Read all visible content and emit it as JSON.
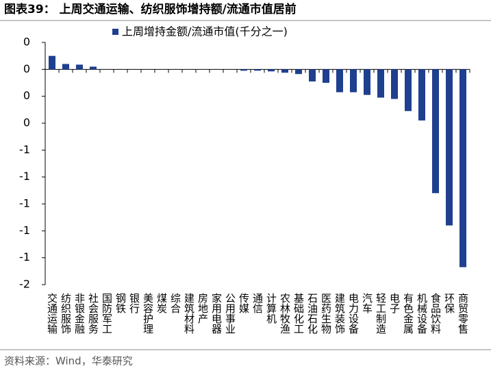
{
  "chart_data": {
    "type": "bar",
    "title": "图表39：  上周交通运输、纺织服饰增持额/流通市值居前",
    "source": "资料来源：Wind，华泰研究",
    "categories": [
      "交通运输",
      "纺织服饰",
      "非银金融",
      "社会服务",
      "国防军工",
      "钢铁",
      "银行",
      "美容护理",
      "煤炭",
      "综合",
      "建筑材料",
      "房地产",
      "家用电器",
      "公用事业",
      "传媒",
      "通信",
      "计算机",
      "农林牧渔",
      "基础化工",
      "石油石化",
      "医药生物",
      "建筑装饰",
      "电力设备",
      "汽车",
      "轻工制造",
      "电子",
      "有色金属",
      "机械设备",
      "食品饮料",
      "环保",
      "商贸零售"
    ],
    "series": [
      {
        "name": "上周增持金额/流通市值(千分之一)",
        "color": "#1f3f8f",
        "values": [
          0.1,
          0.04,
          0.035,
          0.02,
          0,
          0,
          0,
          0,
          0,
          0,
          0,
          0,
          0,
          0,
          -0.01,
          -0.01,
          -0.015,
          -0.025,
          -0.035,
          -0.09,
          -0.1,
          -0.17,
          -0.17,
          -0.19,
          -0.21,
          -0.22,
          -0.31,
          -0.38,
          -0.92,
          -1.16,
          -1.47
        ]
      }
    ],
    "ylim": [
      -1.6,
      0.2
    ],
    "yticks": [
      {
        "value": 0.2,
        "label": "0"
      },
      {
        "value": 0,
        "label": "0"
      },
      {
        "value": -0.2,
        "label": "0"
      },
      {
        "value": -0.4,
        "label": "0"
      },
      {
        "value": -0.6,
        "label": "-1"
      },
      {
        "value": -0.8,
        "label": "-1"
      },
      {
        "value": -1.0,
        "label": "-1"
      },
      {
        "value": -1.2,
        "label": "-1"
      },
      {
        "value": -1.4,
        "label": "-1"
      },
      {
        "value": -1.6,
        "label": "-2"
      }
    ],
    "legend": "top-left"
  }
}
